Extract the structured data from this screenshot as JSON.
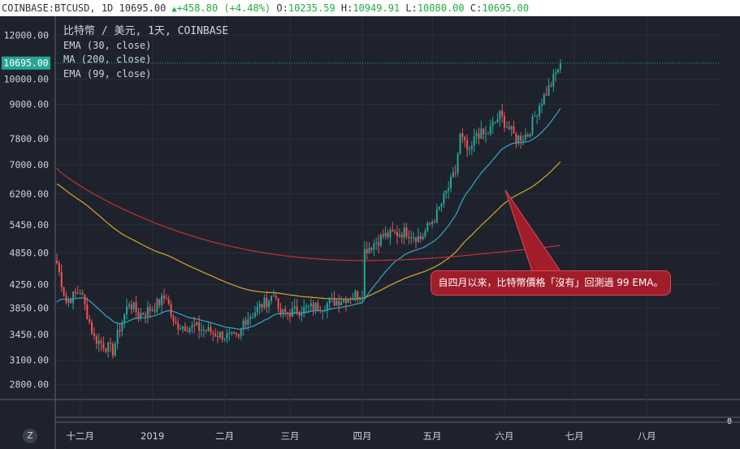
{
  "header": {
    "symbol": "COINBASE:BTCUSD, 1D",
    "price": "10695.00",
    "change": "+458.80 (+4.48%)",
    "open_label": "O:",
    "open": "10235.59",
    "high_label": "H:",
    "high": "10949.91",
    "low_label": "L:",
    "low": "10080.00",
    "close_label": "C:",
    "close": "10695.00"
  },
  "legend": {
    "title": "比特幣 / 美元, 1天, COINBASE",
    "ema30": "EMA (30, close)",
    "ma200": "MA (200, close)",
    "ema99": "EMA (99, close)"
  },
  "callout": "自四月以來，比特幣價格「沒有」回測過 99 EMA。",
  "zoom_button": "Z",
  "colors": {
    "background": "#1e222d",
    "grid": "#2a2f3b",
    "up": "#26a69a",
    "down": "#ef5350",
    "ema30": "#2fa9c6",
    "ma200": "#c8302f",
    "ema99": "#d7a72a",
    "price_tag": "#26a69a",
    "callout_bg": "#a11d2a"
  },
  "chart_data": {
    "type": "candlestick",
    "scale": "log",
    "ylim": [
      2650,
      13000
    ],
    "y_ticks": [
      "12000.00",
      "10000.00",
      "9000.00",
      "7800.00",
      "7000.00",
      "6200.00",
      "5450.00",
      "4850.00",
      "4250.00",
      "3850.00",
      "3450.00",
      "3100.00",
      "2800.00"
    ],
    "current_price_label": "10695.00",
    "x_ticks": [
      "十二月",
      "2019",
      "二月",
      "三月",
      "四月",
      "五月",
      "六月",
      "七月",
      "八月"
    ],
    "volume_axis_label": "0",
    "anchors": [
      {
        "date": "2018-11-21",
        "close": 4650
      },
      {
        "date": "2018-11-25",
        "close": 3950
      },
      {
        "date": "2018-12-01",
        "close": 4150
      },
      {
        "date": "2018-12-07",
        "close": 3400
      },
      {
        "date": "2018-12-15",
        "close": 3220
      },
      {
        "date": "2018-12-18",
        "close": 3550
      },
      {
        "date": "2018-12-22",
        "close": 3950
      },
      {
        "date": "2018-12-26",
        "close": 3750
      },
      {
        "date": "2019-01-01",
        "close": 3850
      },
      {
        "date": "2019-01-07",
        "close": 4050
      },
      {
        "date": "2019-01-10",
        "close": 3600
      },
      {
        "date": "2019-01-20",
        "close": 3550
      },
      {
        "date": "2019-01-30",
        "close": 3450
      },
      {
        "date": "2019-02-07",
        "close": 3380
      },
      {
        "date": "2019-02-09",
        "close": 3650
      },
      {
        "date": "2019-02-23",
        "close": 4100
      },
      {
        "date": "2019-02-24",
        "close": 3750
      },
      {
        "date": "2019-03-15",
        "close": 3900
      },
      {
        "date": "2019-03-31",
        "close": 4100
      },
      {
        "date": "2019-04-01",
        "close": 4150
      },
      {
        "date": "2019-04-02",
        "close": 4900
      },
      {
        "date": "2019-04-10",
        "close": 5200
      },
      {
        "date": "2019-04-20",
        "close": 5300
      },
      {
        "date": "2019-04-26",
        "close": 5150
      },
      {
        "date": "2019-05-03",
        "close": 5700
      },
      {
        "date": "2019-05-11",
        "close": 6800
      },
      {
        "date": "2019-05-13",
        "close": 7900
      },
      {
        "date": "2019-05-17",
        "close": 7300
      },
      {
        "date": "2019-05-20",
        "close": 8000
      },
      {
        "date": "2019-05-24",
        "close": 7900
      },
      {
        "date": "2019-05-30",
        "close": 8600
      },
      {
        "date": "2019-06-06",
        "close": 7800
      },
      {
        "date": "2019-06-11",
        "close": 7950
      },
      {
        "date": "2019-06-16",
        "close": 9000
      },
      {
        "date": "2019-06-21",
        "close": 9800
      },
      {
        "date": "2019-06-25",
        "close": 10695
      }
    ],
    "ema30_start": 3900,
    "ema99_start": 6500,
    "ma200_start": 6900,
    "ma200_end": 5000
  }
}
